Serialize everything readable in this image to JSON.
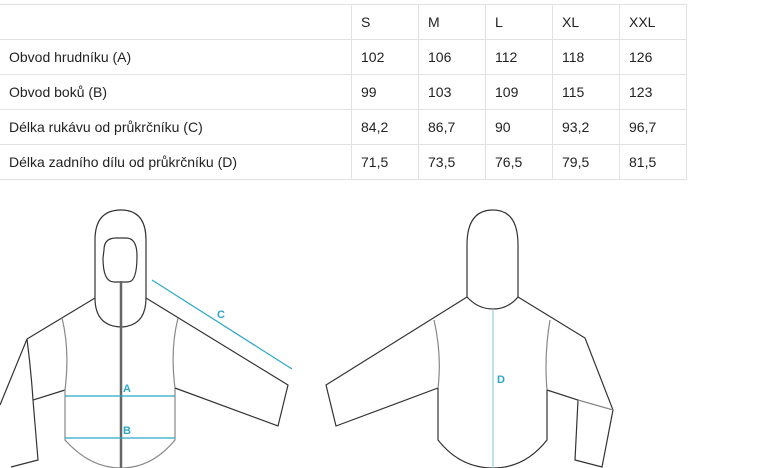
{
  "size_table": {
    "sizes": [
      "S",
      "M",
      "L",
      "XL",
      "XXL"
    ],
    "rows": [
      {
        "label": "Obvod hrudníku (A)",
        "values": [
          "102",
          "106",
          "112",
          "118",
          "126"
        ]
      },
      {
        "label": "Obvod boků (B)",
        "values": [
          "99",
          "103",
          "109",
          "115",
          "123"
        ]
      },
      {
        "label": "Délka rukávu od průkrčníku (C)",
        "values": [
          "84,2",
          "86,7",
          "90",
          "93,2",
          "96,7"
        ]
      },
      {
        "label": "Délka zadního dílu od průkrčníku (D)",
        "values": [
          "71,5",
          "73,5",
          "76,5",
          "79,5",
          "81,5"
        ]
      }
    ]
  },
  "diagram": {
    "labels": {
      "a": "A",
      "b": "B",
      "c": "C",
      "d": "D"
    },
    "measure_color": "#2aa8c8"
  }
}
